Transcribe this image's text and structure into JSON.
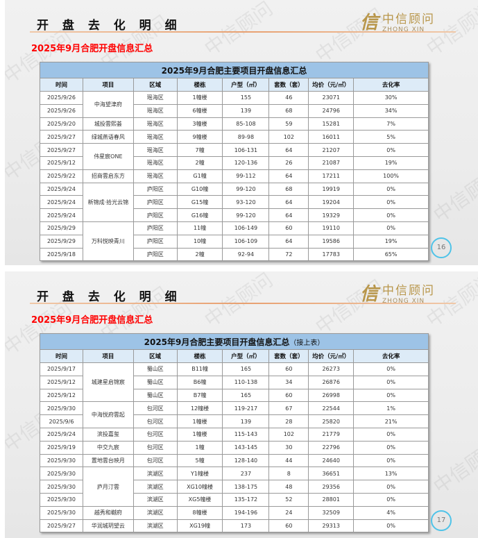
{
  "header": {
    "title": "开 盘 去 化 明 细",
    "subtitle": "2025年9月合肥开盘信息汇总",
    "logo": {
      "mark": "信",
      "cn": "中信顾问",
      "en": "ZHONG XIN"
    },
    "watermark": "中信顾问"
  },
  "columns": [
    "时间",
    "项目",
    "区域",
    "楼栋",
    "户型（㎡）",
    "套数（套）",
    "均价（元/㎡）",
    "去化率"
  ],
  "slides": [
    {
      "page": "16",
      "table_title": "2025年9月合肥主要项目开盘信息汇总",
      "table_note": "",
      "rows": [
        [
          "2025/9/26",
          "中海望津府",
          "瑶海区",
          "1幢楼",
          "155",
          "46",
          "23071",
          "30%"
        ],
        [
          "2025/9/26",
          "",
          "瑶海区",
          "6幢楼",
          "139",
          "68",
          "24796",
          "34%"
        ],
        [
          "2025/9/20",
          "城投雲熙荟",
          "瑶海区",
          "3幢楼",
          "85-108",
          "59",
          "15281",
          "7%"
        ],
        [
          "2025/9/27",
          "绿城燕语春风",
          "瑶海区",
          "9幢楼",
          "89-98",
          "102",
          "16011",
          "5%"
        ],
        [
          "2025/9/27",
          "伟星宸ONE",
          "瑶海区",
          "7幢",
          "106-131",
          "64",
          "21207",
          "0%"
        ],
        [
          "2025/9/12",
          "",
          "瑶海区",
          "2幢",
          "120-136",
          "26",
          "21087",
          "19%"
        ],
        [
          "2025/9/22",
          "招商雲启东方",
          "瑶海区",
          "G1幢",
          "99-112",
          "64",
          "17211",
          "100%"
        ],
        [
          "2025/9/24",
          "新锦成·拾光云锦",
          "庐阳区",
          "G10幢",
          "99-120",
          "68",
          "19919",
          "0%"
        ],
        [
          "2025/9/24",
          "",
          "庐阳区",
          "G15幢",
          "93-120",
          "64",
          "19204",
          "0%"
        ],
        [
          "2025/9/24",
          "",
          "庐阳区",
          "G16幢",
          "99-120",
          "64",
          "19329",
          "0%"
        ],
        [
          "2025/9/29",
          "万科悦映青川",
          "庐阳区",
          "11幢",
          "106-149",
          "60",
          "19110",
          "0%"
        ],
        [
          "2025/9/29",
          "",
          "庐阳区",
          "10幢",
          "106-109",
          "64",
          "19586",
          "19%"
        ],
        [
          "2025/9/18",
          "",
          "庐阳区",
          "2幢",
          "92-94",
          "72",
          "17783",
          "65%"
        ]
      ],
      "spans": {
        "0": 2,
        "4": 2,
        "7": 3,
        "10": 3
      }
    },
    {
      "page": "17",
      "table_title": "2025年9月合肥主要项目开盘信息汇总",
      "table_note": "（接上表）",
      "rows": [
        [
          "2025/9/17",
          "城建星启锦宸",
          "蜀山区",
          "B11幢",
          "165",
          "60",
          "26273",
          "0%"
        ],
        [
          "2025/9/12",
          "",
          "蜀山区",
          "B6幢",
          "110-138",
          "34",
          "26876",
          "0%"
        ],
        [
          "2025/9/12",
          "",
          "蜀山区",
          "B7幢",
          "165",
          "60",
          "26998",
          "0%"
        ],
        [
          "2025/9/30",
          "中海悦府雲起",
          "包河区",
          "12幢楼",
          "119-217",
          "67",
          "22544",
          "1%"
        ],
        [
          "2025/9/6",
          "",
          "包河区",
          "1幢楼",
          "139",
          "28",
          "25820",
          "21%"
        ],
        [
          "2025/9/24",
          "滨投嘉玺",
          "包河区",
          "1幢楼",
          "115-143",
          "102",
          "21779",
          "0%"
        ],
        [
          "2025/9/19",
          "中交九宸",
          "包河区",
          "1幢",
          "143-145",
          "30",
          "22796",
          "0%"
        ],
        [
          "2025/9/30",
          "置地雲台映月",
          "包河区",
          "5幢",
          "128-140",
          "44",
          "24640",
          "0%"
        ],
        [
          "2025/9/30",
          "庐月汀雲",
          "滨湖区",
          "Y1幢楼",
          "237",
          "8",
          "36651",
          "13%"
        ],
        [
          "2025/9/30",
          "",
          "滨湖区",
          "XG10幢楼",
          "138-175",
          "48",
          "29356",
          "0%"
        ],
        [
          "2025/9/30",
          "",
          "滨湖区",
          "XG5幢楼",
          "135-172",
          "52",
          "28801",
          "0%"
        ],
        [
          "2025/9/30",
          "越秀和樾府",
          "滨湖区",
          "8幢楼",
          "194-196",
          "24",
          "32509",
          "4%"
        ],
        [
          "2025/9/27",
          "华润城玥望云",
          "滨湖区",
          "XG19幢",
          "173",
          "60",
          "29313",
          "0%"
        ]
      ],
      "spans": {
        "0": 3,
        "3": 2,
        "8": 3
      }
    }
  ],
  "colors": {
    "subtitle": "#ff0000",
    "table_title_bg": "#9dc3e6",
    "header_bg": "#ddebf7",
    "page_circle": "#4fc3e8",
    "logo": "#b8964a"
  }
}
